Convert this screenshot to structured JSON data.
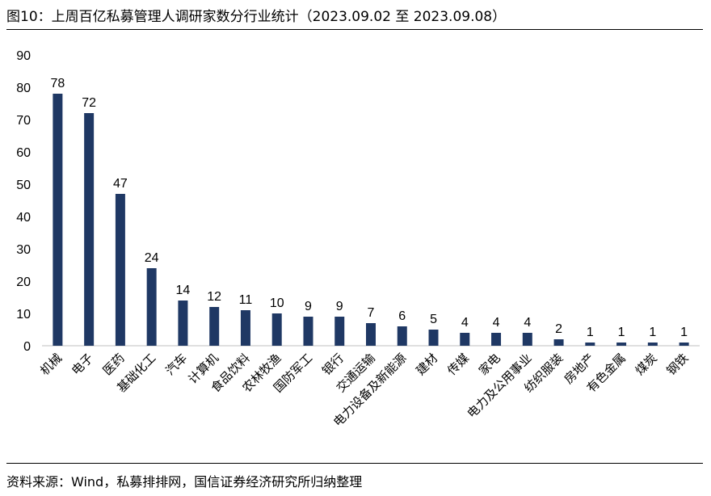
{
  "title": "图10：上周百亿私募管理人调研家数分行业统计（2023.09.02 至 2023.09.08）",
  "source": "资料来源：Wind，私募排排网，国信证券经济研究所归纳整理",
  "colors": {
    "bar": "#1f3864",
    "axis": "#bfbfbf",
    "text": "#000000"
  },
  "chart_data": {
    "type": "bar",
    "categories": [
      "机械",
      "电子",
      "医药",
      "基础化工",
      "汽车",
      "计算机",
      "食品饮料",
      "农林牧渔",
      "国防军工",
      "银行",
      "交通运输",
      "电力设备及新能源",
      "建材",
      "传媒",
      "家电",
      "电力及公用事业",
      "纺织服装",
      "房地产",
      "有色金属",
      "煤炭",
      "钢铁"
    ],
    "values": [
      78,
      72,
      47,
      24,
      14,
      12,
      11,
      10,
      9,
      9,
      7,
      6,
      5,
      4,
      4,
      4,
      2,
      1,
      1,
      1,
      1
    ],
    "yticks": [
      0,
      10,
      20,
      30,
      40,
      50,
      60,
      70,
      80,
      90
    ],
    "ylim": [
      0,
      90
    ],
    "grid": false,
    "legend": "none"
  }
}
